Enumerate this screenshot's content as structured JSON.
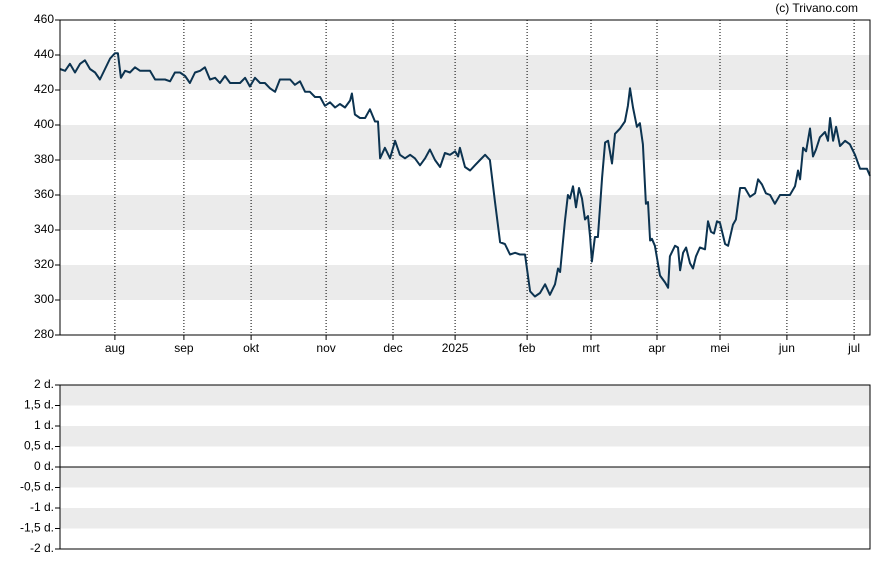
{
  "chart_data": [
    {
      "type": "line",
      "credit": "(c) Trivano.com",
      "color": "#0c3350",
      "xlim": [
        0,
        270
      ],
      "ylim": [
        280,
        460
      ],
      "yticks": [
        280,
        300,
        320,
        340,
        360,
        380,
        400,
        420,
        440,
        460
      ],
      "xticks": [
        {
          "value": 18.3,
          "label": "aug"
        },
        {
          "value": 41.3,
          "label": "sep"
        },
        {
          "value": 63.7,
          "label": "okt"
        },
        {
          "value": 88.7,
          "label": "nov"
        },
        {
          "value": 111,
          "label": "dec"
        },
        {
          "value": 131.7,
          "label": "2025"
        },
        {
          "value": 155.7,
          "label": "feb"
        },
        {
          "value": 177,
          "label": "mrt"
        },
        {
          "value": 199,
          "label": "apr"
        },
        {
          "value": 220,
          "label": "mei"
        },
        {
          "value": 242.3,
          "label": "jun"
        },
        {
          "value": 264.7,
          "label": "jul"
        }
      ],
      "x": [
        0,
        1.7,
        3.3,
        5,
        6.7,
        8.3,
        10,
        11.7,
        13.3,
        15,
        16.7,
        18.3,
        19.3,
        20.3,
        21.7,
        23.3,
        25,
        26.7,
        30,
        31.7,
        35,
        36.7,
        38.3,
        40,
        41.7,
        43.3,
        45,
        46.7,
        48.3,
        50,
        51.7,
        53.3,
        55,
        56.7,
        60,
        61.7,
        63.3,
        65,
        66.7,
        68.3,
        70,
        71.7,
        73.3,
        75,
        76.7,
        78.3,
        80,
        81.7,
        83.3,
        85,
        86.7,
        88.3,
        90,
        91.7,
        93.3,
        95,
        96.7,
        97.3,
        98.3,
        100,
        101.7,
        103.3,
        105,
        106,
        106.7,
        108.3,
        110,
        111.7,
        113.3,
        115,
        116.7,
        118.3,
        120,
        121.7,
        123.3,
        125,
        126.7,
        128.3,
        130,
        131.7,
        132.7,
        133.3,
        135,
        136.7,
        138.3,
        140,
        141.7,
        143.3,
        145,
        146.7,
        148.3,
        150,
        151.7,
        153.3,
        155,
        156.7,
        158.3,
        160,
        161.7,
        163.3,
        165,
        166,
        166.7,
        168.3,
        169.3,
        170,
        171,
        172,
        173,
        174,
        175,
        176,
        176.7,
        177.3,
        178.3,
        179.3,
        180.7,
        181.7,
        182.7,
        184,
        185,
        186.7,
        188.3,
        189.3,
        190,
        191,
        192.3,
        193.3,
        194.3,
        195.3,
        196,
        196.7,
        197.3,
        198.3,
        200,
        201.7,
        202.7,
        203.3,
        205,
        206,
        206.7,
        207.7,
        208.7,
        210,
        211,
        212,
        213.3,
        215,
        216,
        217,
        218,
        219,
        220,
        221.7,
        222.7,
        224.3,
        225.3,
        226.7,
        228.3,
        230,
        231.7,
        232.7,
        234,
        235.3,
        236.7,
        238.3,
        240,
        241.7,
        243.3,
        245,
        246,
        246.7,
        247.7,
        248.7,
        250,
        251,
        252,
        253.3,
        255,
        256,
        256.7,
        257.7,
        258.7,
        260,
        261.7,
        263.3,
        265,
        266.7,
        269,
        270
      ],
      "values": [
        432,
        431,
        435,
        430,
        435,
        437,
        432,
        430,
        426,
        432,
        438,
        441,
        441,
        427,
        431,
        430,
        433,
        431,
        431,
        426,
        426,
        425,
        430,
        430,
        428,
        424,
        430,
        431,
        433,
        426,
        427,
        424,
        428,
        424,
        424,
        427,
        422,
        427,
        424,
        424,
        421,
        419,
        426,
        426,
        426,
        423,
        425,
        419,
        419,
        416,
        416,
        411,
        413,
        410,
        412,
        410,
        414,
        418,
        406,
        404,
        404,
        409,
        402,
        402,
        381,
        387,
        381,
        391,
        383,
        381,
        383,
        381,
        377,
        381,
        386,
        380,
        376,
        384,
        383,
        385,
        382,
        387,
        376,
        374,
        377,
        380,
        383,
        380,
        356,
        333,
        332,
        326,
        327,
        326,
        326,
        305,
        302,
        304,
        309,
        303,
        309,
        318,
        316,
        345,
        360,
        358,
        365,
        353,
        364,
        358,
        346,
        348,
        336,
        322,
        336,
        336,
        370,
        390,
        391,
        378,
        395,
        398,
        402,
        411,
        421,
        410,
        399,
        401,
        389,
        355,
        356,
        334,
        335,
        331,
        314,
        310,
        307,
        325,
        331,
        330,
        317,
        327,
        330,
        321,
        318,
        325,
        330,
        329,
        345,
        339,
        338,
        345,
        344,
        332,
        331,
        343,
        346,
        364,
        364,
        359,
        361,
        369,
        366,
        361,
        360,
        355,
        360,
        360,
        360,
        365,
        374,
        369,
        387,
        385,
        398,
        382,
        386,
        393,
        396,
        391,
        404,
        391,
        399,
        388,
        391,
        389,
        383,
        375,
        375,
        371
      ]
    },
    {
      "type": "bar",
      "ylim": [
        -2,
        2
      ],
      "yticks": [
        {
          "value": -2,
          "label": "-2 d."
        },
        {
          "value": -1.5,
          "label": "-1,5 d."
        },
        {
          "value": -1,
          "label": "-1 d."
        },
        {
          "value": -0.5,
          "label": "-0,5 d."
        },
        {
          "value": 0,
          "label": "0 d."
        },
        {
          "value": 0.5,
          "label": "0,5 d."
        },
        {
          "value": 1,
          "label": "1 d."
        },
        {
          "value": 1.5,
          "label": "1,5 d."
        },
        {
          "value": 2,
          "label": "2 d."
        }
      ]
    }
  ]
}
